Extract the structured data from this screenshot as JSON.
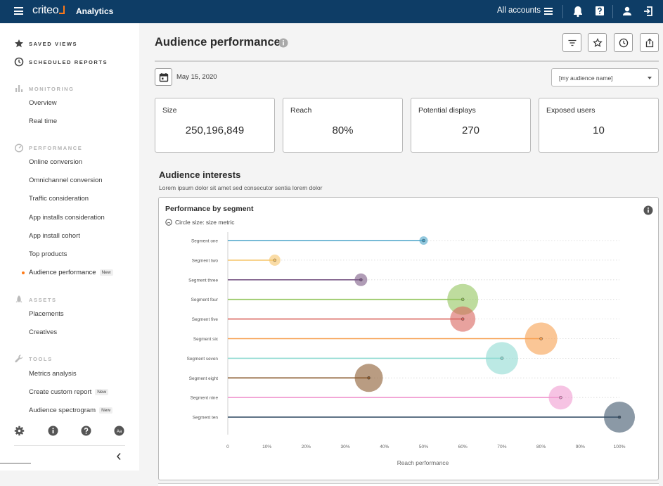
{
  "topbar": {
    "logo_text": "criteo",
    "app_name": "Analytics",
    "accounts_label": "All accounts",
    "icons": [
      "menu-icon",
      "list-icon",
      "bell-icon",
      "help-icon",
      "user-icon",
      "logout-icon"
    ]
  },
  "sidebar": {
    "saved_views": "Saved views",
    "scheduled_reports": "Scheduled reports",
    "monitoring": {
      "label": "Monitoring",
      "items": [
        "Overview",
        "Real time"
      ]
    },
    "performance": {
      "label": "Performance",
      "items": [
        "Online conversion",
        "Omnichannel conversion",
        "Traffic consideration",
        "App installs consideration",
        "App install cohort",
        "Top products"
      ],
      "active_item": "Audience performance",
      "active_badge": "New"
    },
    "assets": {
      "label": "Assets",
      "items": [
        "Placements",
        "Creatives"
      ]
    },
    "tools": {
      "label": "Tools",
      "items": [
        "Metrics analysis",
        "Create custom report",
        "Audience spectrogram"
      ],
      "badge": "New",
      "badge_2": "New"
    },
    "avatar_initials": "Aa"
  },
  "header": {
    "title": "Audience performance",
    "date": "May 15, 2020",
    "audience_select": "[my audience name]"
  },
  "kpis": [
    {
      "label": "Size",
      "value": "250,196,849"
    },
    {
      "label": "Reach",
      "value": "80%"
    },
    {
      "label": "Potential displays",
      "value": "270"
    },
    {
      "label": "Exposed users",
      "value": "10"
    }
  ],
  "interests": {
    "title": "Audience interests",
    "subtitle": "Lorem ipsum dolor sit amet sed consecutor sentia lorem dolor"
  },
  "chart_data": {
    "type": "scatter",
    "title": "Performance by segment",
    "size_note": "Circle size: size metric",
    "xlabel": "Reach performance",
    "ylabel": "",
    "xlim": [
      0,
      100
    ],
    "x_ticks": [
      "0",
      "10%",
      "20%",
      "30%",
      "40%",
      "50%",
      "60%",
      "70%",
      "80%",
      "90%",
      "100%"
    ],
    "categories": [
      "Segment one",
      "Segment two",
      "Segment three",
      "Segment four",
      "Segment five",
      "Segment six",
      "Segment seven",
      "Segment eight",
      "Segment nine",
      "Segment ten"
    ],
    "values": [
      50,
      12,
      34,
      60,
      60,
      80,
      70,
      36,
      85,
      100
    ],
    "sizes": [
      6,
      8,
      9,
      22,
      18,
      23,
      23,
      20,
      17,
      22
    ],
    "colors": [
      "#4aa3c8",
      "#f6c56b",
      "#7b5a86",
      "#93c55e",
      "#d9645e",
      "#f7a050",
      "#8fdad2",
      "#8a5a2e",
      "#f09bd0",
      "#3d556b"
    ],
    "grid": true
  }
}
